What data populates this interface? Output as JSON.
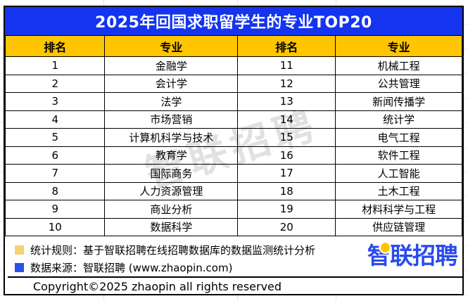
{
  "title": "2025年回国求职留学生的专业TOP20",
  "table": {
    "headers": [
      "排名",
      "专业",
      "排名",
      "专业"
    ],
    "rows": [
      [
        "1",
        "金融学",
        "11",
        "机械工程"
      ],
      [
        "2",
        "会计学",
        "12",
        "公共管理"
      ],
      [
        "3",
        "法学",
        "13",
        "新闻传播学"
      ],
      [
        "4",
        "市场营销",
        "14",
        "统计学"
      ],
      [
        "5",
        "计算机科学与技术",
        "15",
        "电气工程"
      ],
      [
        "6",
        "教育学",
        "16",
        "软件工程"
      ],
      [
        "7",
        "国际商务",
        "17",
        "人工智能"
      ],
      [
        "8",
        "人力资源管理",
        "18",
        "土木工程"
      ],
      [
        "9",
        "商业分析",
        "19",
        "材料科学与工程"
      ],
      [
        "10",
        "数据科学",
        "20",
        "供应链管理"
      ]
    ]
  },
  "chart_data": {
    "type": "table",
    "title": "2025年回国求职留学生的专业TOP20",
    "columns": [
      "排名",
      "专业"
    ],
    "rankings": [
      {
        "rank": 1,
        "major": "金融学"
      },
      {
        "rank": 2,
        "major": "会计学"
      },
      {
        "rank": 3,
        "major": "法学"
      },
      {
        "rank": 4,
        "major": "市场营销"
      },
      {
        "rank": 5,
        "major": "计算机科学与技术"
      },
      {
        "rank": 6,
        "major": "教育学"
      },
      {
        "rank": 7,
        "major": "国际商务"
      },
      {
        "rank": 8,
        "major": "人力资源管理"
      },
      {
        "rank": 9,
        "major": "商业分析"
      },
      {
        "rank": 10,
        "major": "数据科学"
      },
      {
        "rank": 11,
        "major": "机械工程"
      },
      {
        "rank": 12,
        "major": "公共管理"
      },
      {
        "rank": 13,
        "major": "新闻传播学"
      },
      {
        "rank": 14,
        "major": "统计学"
      },
      {
        "rank": 15,
        "major": "电气工程"
      },
      {
        "rank": 16,
        "major": "软件工程"
      },
      {
        "rank": 17,
        "major": "人工智能"
      },
      {
        "rank": 18,
        "major": "土木工程"
      },
      {
        "rank": 19,
        "major": "材料科学与工程"
      },
      {
        "rank": 20,
        "major": "供应链管理"
      }
    ]
  },
  "legend": {
    "items": [
      {
        "swatch_color": "#F6D176",
        "label": "统计规则：基于智联招聘在线招聘数据库的数据监测统计分析"
      },
      {
        "swatch_color": "#2A4FEA",
        "label": "数据来源：智联招聘 (www.zhaopin.com)"
      }
    ]
  },
  "logo": {
    "text": "智联招聘"
  },
  "watermark": {
    "text": "智联招聘"
  },
  "footer": {
    "copyright": "Copyright©2025 zhaopin all rights reserved"
  },
  "colors": {
    "title_bar_blue": "#1434F0",
    "header_row_yellow": "#FFC500",
    "logo_blue": "#2B4BEB",
    "logo_dot_yellow": "#FFC500",
    "border_black": "#000000",
    "watermark_gray": "#C4C4C4"
  }
}
